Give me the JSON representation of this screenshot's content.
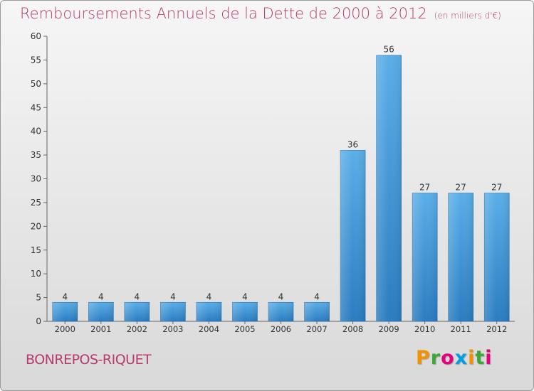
{
  "header": {
    "title": "Remboursements Annuels de la Dette de 2000 à 2012",
    "unit": "(en milliers d'€)"
  },
  "footer": {
    "commune": "BONREPOS-RIQUET",
    "logo": "Proxiti"
  },
  "colors": {
    "bar_light": "#5aaee8",
    "bar_dark": "#2a7cc0",
    "title": "#b83a6e"
  },
  "chart_data": {
    "type": "bar",
    "title": "Remboursements Annuels de la Dette de 2000 à 2012",
    "ylabel": "",
    "xlabel": "",
    "categories": [
      "2000",
      "2001",
      "2002",
      "2003",
      "2004",
      "2005",
      "2006",
      "2007",
      "2008",
      "2009",
      "2010",
      "2011",
      "2012"
    ],
    "values": [
      4,
      4,
      4,
      4,
      4,
      4,
      4,
      4,
      36,
      56,
      27,
      27,
      27
    ],
    "ylim": [
      0,
      60
    ],
    "yticks": [
      0,
      5,
      10,
      15,
      20,
      25,
      30,
      35,
      40,
      45,
      50,
      55,
      60
    ],
    "grid": false,
    "data_labels": true
  }
}
